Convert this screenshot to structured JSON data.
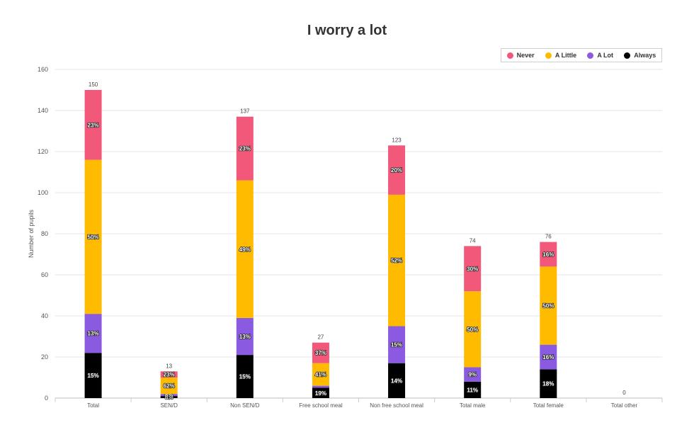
{
  "chart_data": {
    "type": "bar",
    "stacked": true,
    "title": "I worry a lot",
    "xlabel": "",
    "ylabel": "Number of pupils",
    "ylim": [
      0,
      160
    ],
    "yticks": [
      0,
      20,
      40,
      60,
      80,
      100,
      120,
      140,
      160
    ],
    "grid": true,
    "legend_position": "top-right",
    "categories": [
      "Total",
      "SEN/D",
      "Non SEN/D",
      "Free school meal",
      "Non free school meal",
      "Total male",
      "Total female",
      "Total other"
    ],
    "totals": [
      150,
      13,
      137,
      27,
      123,
      74,
      76,
      0
    ],
    "series": [
      {
        "name": "Always",
        "color": "#000000",
        "values": [
          22,
          1,
          21,
          5,
          17,
          8,
          14,
          0
        ],
        "labels": [
          "15%",
          "8%",
          "15%",
          "19%",
          "14%",
          "11%",
          "18%",
          ""
        ]
      },
      {
        "name": "A Lot",
        "color": "#8a5be0",
        "values": [
          19,
          1,
          18,
          1,
          18,
          7,
          12,
          0
        ],
        "labels": [
          "13%",
          "8%",
          "13%",
          "",
          "15%",
          "9%",
          "16%",
          ""
        ]
      },
      {
        "name": "A Little",
        "color": "#ffbb00",
        "values": [
          75,
          8,
          67,
          11,
          64,
          37,
          38,
          0
        ],
        "labels": [
          "50%",
          "62%",
          "49%",
          "41%",
          "52%",
          "50%",
          "50%",
          ""
        ]
      },
      {
        "name": "Never",
        "color": "#f2587a",
        "values": [
          34,
          3,
          31,
          10,
          24,
          22,
          12,
          0
        ],
        "labels": [
          "23%",
          "23%",
          "23%",
          "37%",
          "20%",
          "30%",
          "16%",
          ""
        ]
      }
    ],
    "legend_order": [
      "Never",
      "A Little",
      "A Lot",
      "Always"
    ]
  }
}
